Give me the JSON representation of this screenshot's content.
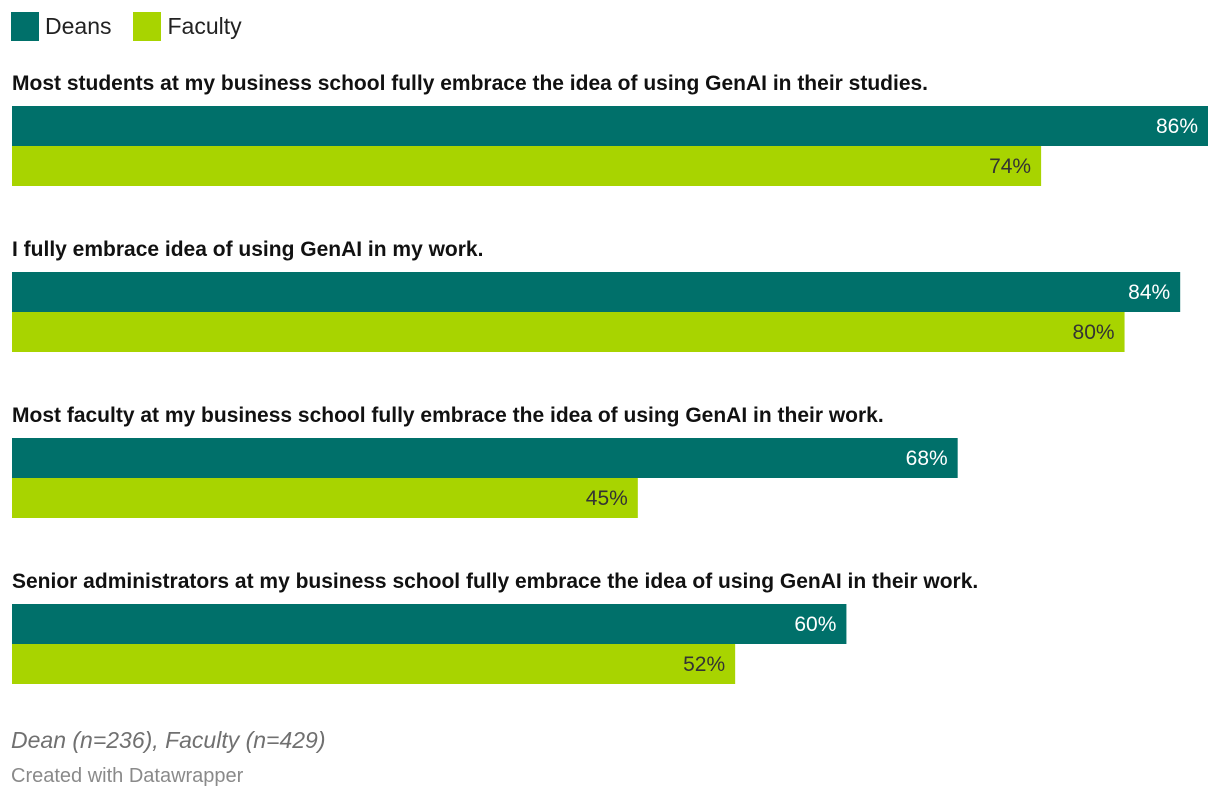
{
  "legend": {
    "items": [
      {
        "label": "Deans",
        "color": "#00706a"
      },
      {
        "label": "Faculty",
        "color": "#a8d400"
      }
    ]
  },
  "chart_data": {
    "type": "bar",
    "orientation": "horizontal",
    "value_suffix": "%",
    "xlim": [
      0,
      86
    ],
    "categories": [
      "Most students at my business school fully embrace the idea of using GenAI in their studies.",
      "I fully embrace idea of using GenAI in my work.",
      "Most faculty at my business school fully embrace the idea of using GenAI in their work.",
      "Senior administrators at my business school fully embrace the idea of using GenAI in their work."
    ],
    "series": [
      {
        "name": "Deans",
        "color": "#00706a",
        "label_color": "#ffffff",
        "values": [
          86,
          84,
          68,
          60
        ]
      },
      {
        "name": "Faculty",
        "color": "#a8d400",
        "label_color": "#333333",
        "values": [
          74,
          80,
          45,
          52
        ]
      }
    ]
  },
  "footer": {
    "note": "Dean (n=236), Faculty (n=429)",
    "credit": "Created with Datawrapper"
  }
}
